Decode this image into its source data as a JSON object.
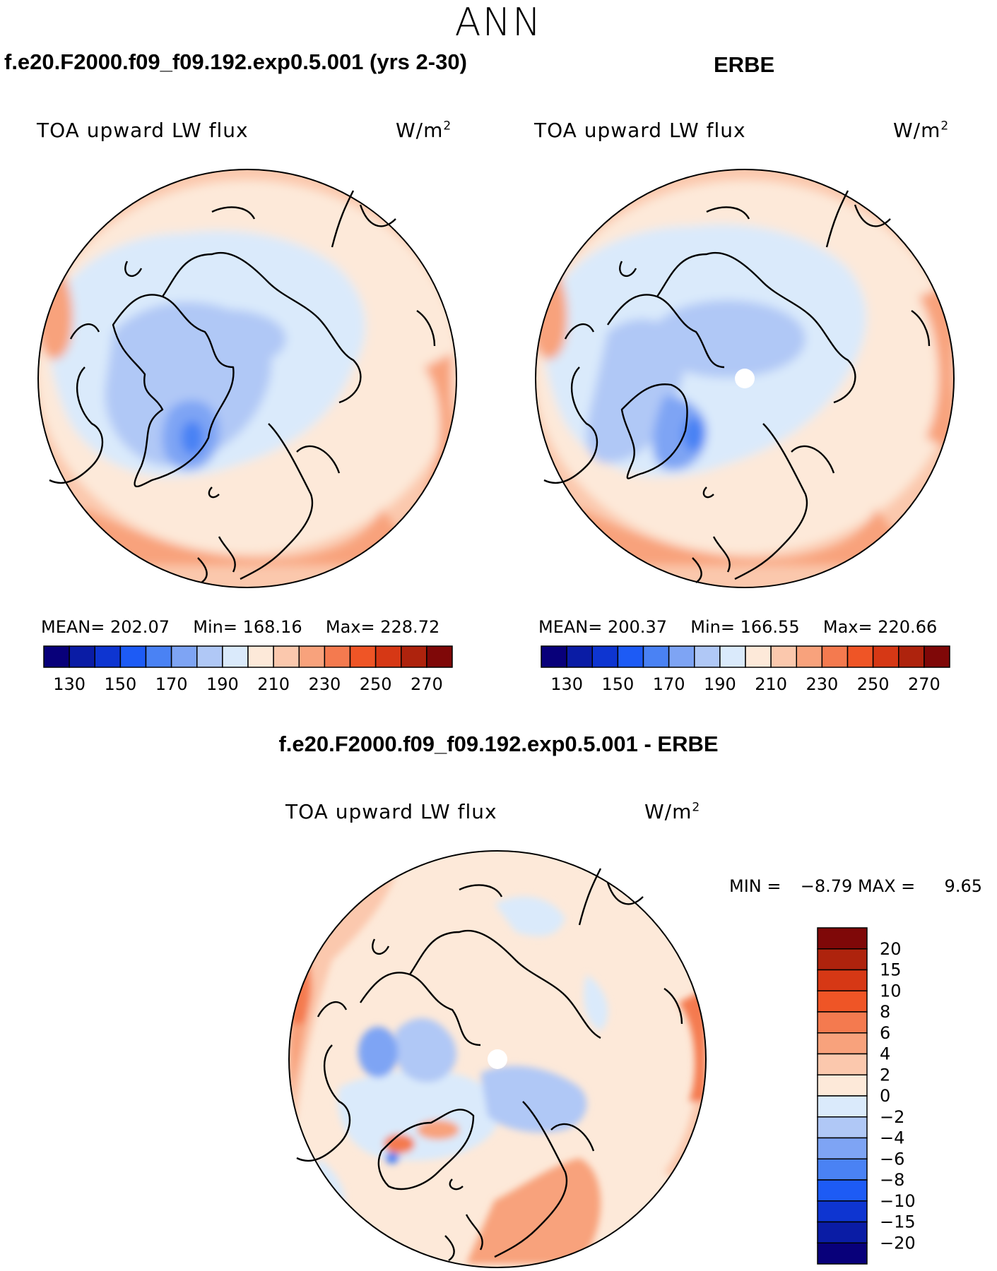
{
  "season": "ANN",
  "colors": {
    "abs_scale": [
      "#08007a",
      "#0a1ca5",
      "#0e35d1",
      "#1d5bf5",
      "#4a82f4",
      "#7ea4f4",
      "#b0c8f6",
      "#daeafb",
      "#fde9d9",
      "#fbc8ad",
      "#f8a27c",
      "#f47a4f",
      "#ef5526",
      "#d63815",
      "#ae230d",
      "#7f0808"
    ],
    "diff_scale": [
      "#7f0808",
      "#ae230d",
      "#d63815",
      "#ef5526",
      "#f47a4f",
      "#f8a27c",
      "#fbc8ad",
      "#fde9d9",
      "#daeafb",
      "#b0c8f6",
      "#7ea4f4",
      "#4a82f4",
      "#1d5bf5",
      "#0e35d1",
      "#0a1ca5",
      "#08007a"
    ]
  },
  "panels": {
    "model": {
      "title": "f.e20.F2000.f09_f09.192.exp0.5.001 (yrs 2-30)",
      "var_label": "TOA upward LW flux",
      "units": "W/m",
      "units_sup": "2",
      "mean_label": "MEAN=",
      "mean": "202.07",
      "min_label": "Min=",
      "min": "168.16",
      "max_label": "Max=",
      "max": "228.72"
    },
    "obs": {
      "title": "ERBE",
      "var_label": "TOA upward LW flux",
      "units": "W/m",
      "units_sup": "2",
      "mean_label": "MEAN=",
      "mean": "200.37",
      "min_label": "Min=",
      "min": "166.55",
      "max_label": "Max=",
      "max": "220.66"
    },
    "diff": {
      "title": "f.e20.F2000.f09_f09.192.exp0.5.001 - ERBE",
      "var_label": "TOA upward LW flux",
      "units": "W/m",
      "units_sup": "2",
      "min_label": "MIN =",
      "min": "−8.79",
      "max_label": "MAX =",
      "max": "9.65"
    }
  },
  "chart_data": [
    {
      "type": "heatmap",
      "projection": "north polar stereographic",
      "title": "f.e20.F2000.f09_f09.192.exp0.5.001 (yrs 2-30)",
      "variable": "TOA upward LW flux",
      "units": "W/m2",
      "stats": {
        "mean": 202.07,
        "min": 168.16,
        "max": 228.72
      },
      "colorbar": {
        "levels": [
          130,
          140,
          150,
          160,
          170,
          180,
          190,
          200,
          210,
          220,
          230,
          240,
          250,
          260,
          270
        ],
        "tick_labels": [
          "130",
          "150",
          "170",
          "190",
          "210",
          "230",
          "250",
          "270"
        ]
      }
    },
    {
      "type": "heatmap",
      "projection": "north polar stereographic",
      "title": "ERBE",
      "variable": "TOA upward LW flux",
      "units": "W/m2",
      "stats": {
        "mean": 200.37,
        "min": 166.55,
        "max": 220.66
      },
      "colorbar": {
        "levels": [
          130,
          140,
          150,
          160,
          170,
          180,
          190,
          200,
          210,
          220,
          230,
          240,
          250,
          260,
          270
        ],
        "tick_labels": [
          "130",
          "150",
          "170",
          "190",
          "210",
          "230",
          "250",
          "270"
        ]
      }
    },
    {
      "type": "heatmap",
      "projection": "north polar stereographic",
      "title": "f.e20.F2000.f09_f09.192.exp0.5.001 - ERBE",
      "variable": "TOA upward LW flux",
      "units": "W/m2",
      "stats": {
        "min": -8.79,
        "max": 9.65
      },
      "colorbar": {
        "levels": [
          20,
          15,
          10,
          8,
          6,
          4,
          2,
          0,
          -2,
          -4,
          -6,
          -8,
          -10,
          -15,
          -20
        ],
        "tick_labels": [
          "20",
          "15",
          "10",
          "8",
          "6",
          "4",
          "2",
          "0",
          "−2",
          "−4",
          "−6",
          "−8",
          "−10",
          "−15",
          "−20"
        ]
      }
    }
  ]
}
